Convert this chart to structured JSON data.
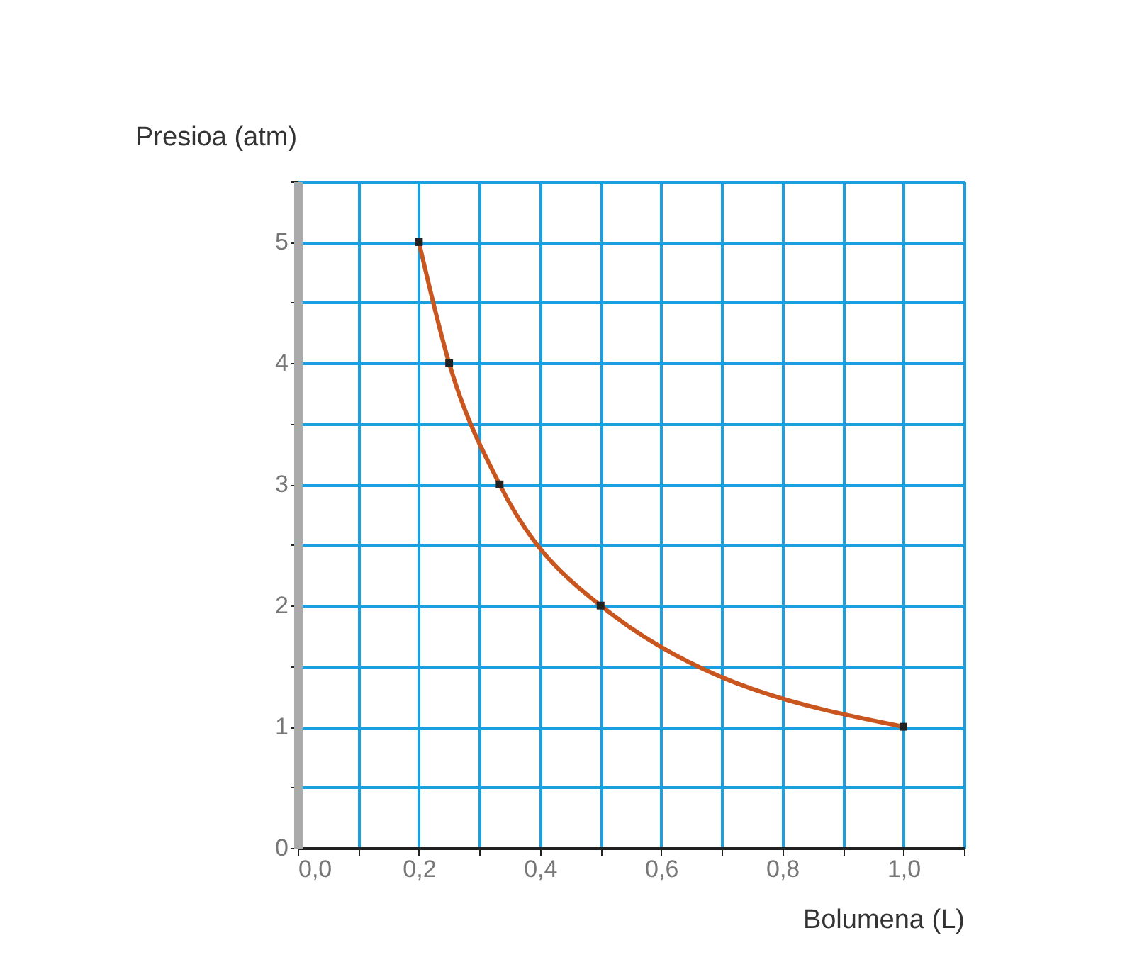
{
  "chart_data": {
    "type": "line",
    "xlabel": "Bolumena (L)",
    "ylabel": "Presioa (atm)",
    "x": [
      0.2,
      0.25,
      0.3333,
      0.5,
      1.0
    ],
    "series": [
      {
        "color": "#c8561e",
        "values": [
          5,
          4,
          3,
          2,
          1
        ]
      }
    ],
    "marker": "square",
    "line_style": "solid",
    "grid": true,
    "legend": false,
    "xlim": [
      0,
      1.1
    ],
    "ylim": [
      0,
      5.5
    ],
    "xticks": [
      {
        "value": 0,
        "label": "0,0"
      },
      {
        "value": 0.1,
        "label": null
      },
      {
        "value": 0.2,
        "label": "0,2"
      },
      {
        "value": 0.3,
        "label": null
      },
      {
        "value": 0.4,
        "label": "0,4"
      },
      {
        "value": 0.5,
        "label": null
      },
      {
        "value": 0.6,
        "label": "0,6"
      },
      {
        "value": 0.7,
        "label": null
      },
      {
        "value": 0.8,
        "label": "0,8"
      },
      {
        "value": 0.9,
        "label": null
      },
      {
        "value": 1.0,
        "label": "1,0"
      },
      {
        "value": 1.1,
        "label": null
      }
    ],
    "yticks": [
      0,
      {
        "value": 0.5,
        "label": null
      },
      1,
      {
        "value": 1.5,
        "label": null
      },
      2,
      {
        "value": 2.5,
        "label": null
      },
      3,
      {
        "value": 3.5,
        "label": null
      },
      4,
      {
        "value": 4.5,
        "label": null
      },
      5,
      {
        "value": 5.5,
        "label": null
      }
    ]
  }
}
